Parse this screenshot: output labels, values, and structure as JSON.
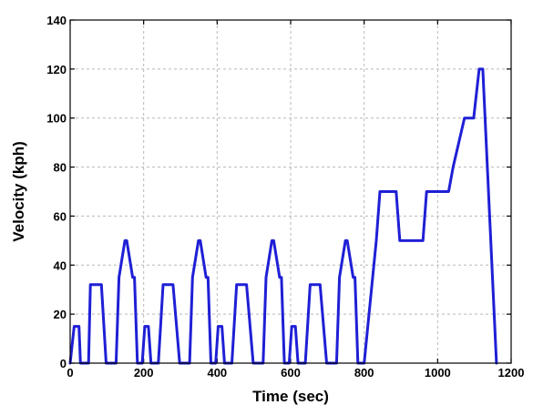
{
  "chart_data": {
    "type": "line",
    "title": "",
    "xlabel": "Time (sec)",
    "ylabel": "Velocity (kph)",
    "xlim": [
      0,
      1200
    ],
    "ylim": [
      0,
      140
    ],
    "xticks": [
      0,
      200,
      400,
      600,
      800,
      1000,
      1200
    ],
    "yticks": [
      0,
      20,
      40,
      60,
      80,
      100,
      120,
      140
    ],
    "grid": true,
    "series": [
      {
        "color": "#1f1fd6",
        "x": [
          0,
          11,
          15,
          24,
          28,
          50,
          55,
          85,
          98,
          125,
          133,
          149,
          154,
          170,
          175,
          183,
          196,
          203,
          213,
          220,
          240,
          253,
          280,
          298,
          325,
          333,
          349,
          354,
          370,
          375,
          383,
          396,
          403,
          413,
          420,
          440,
          453,
          480,
          498,
          525,
          533,
          549,
          554,
          570,
          575,
          583,
          596,
          603,
          613,
          620,
          640,
          653,
          680,
          698,
          725,
          733,
          749,
          754,
          770,
          775,
          783,
          800,
          833,
          843,
          887,
          897,
          960,
          970,
          1030,
          1042,
          1073,
          1080,
          1098,
          1113,
          1118,
          1123,
          1160
        ],
        "y": [
          0,
          15,
          15,
          15,
          0,
          0,
          32,
          32,
          0,
          0,
          35,
          50,
          50,
          35,
          35,
          0,
          0,
          15,
          15,
          0,
          0,
          32,
          32,
          0,
          0,
          35,
          50,
          50,
          35,
          35,
          0,
          0,
          15,
          15,
          0,
          0,
          32,
          32,
          0,
          0,
          35,
          50,
          50,
          35,
          35,
          0,
          0,
          15,
          15,
          0,
          0,
          32,
          32,
          0,
          0,
          35,
          50,
          50,
          35,
          35,
          0,
          0,
          50,
          70,
          70,
          50,
          50,
          70,
          70,
          80,
          100,
          100,
          100,
          120,
          120,
          120,
          0
        ]
      }
    ]
  }
}
